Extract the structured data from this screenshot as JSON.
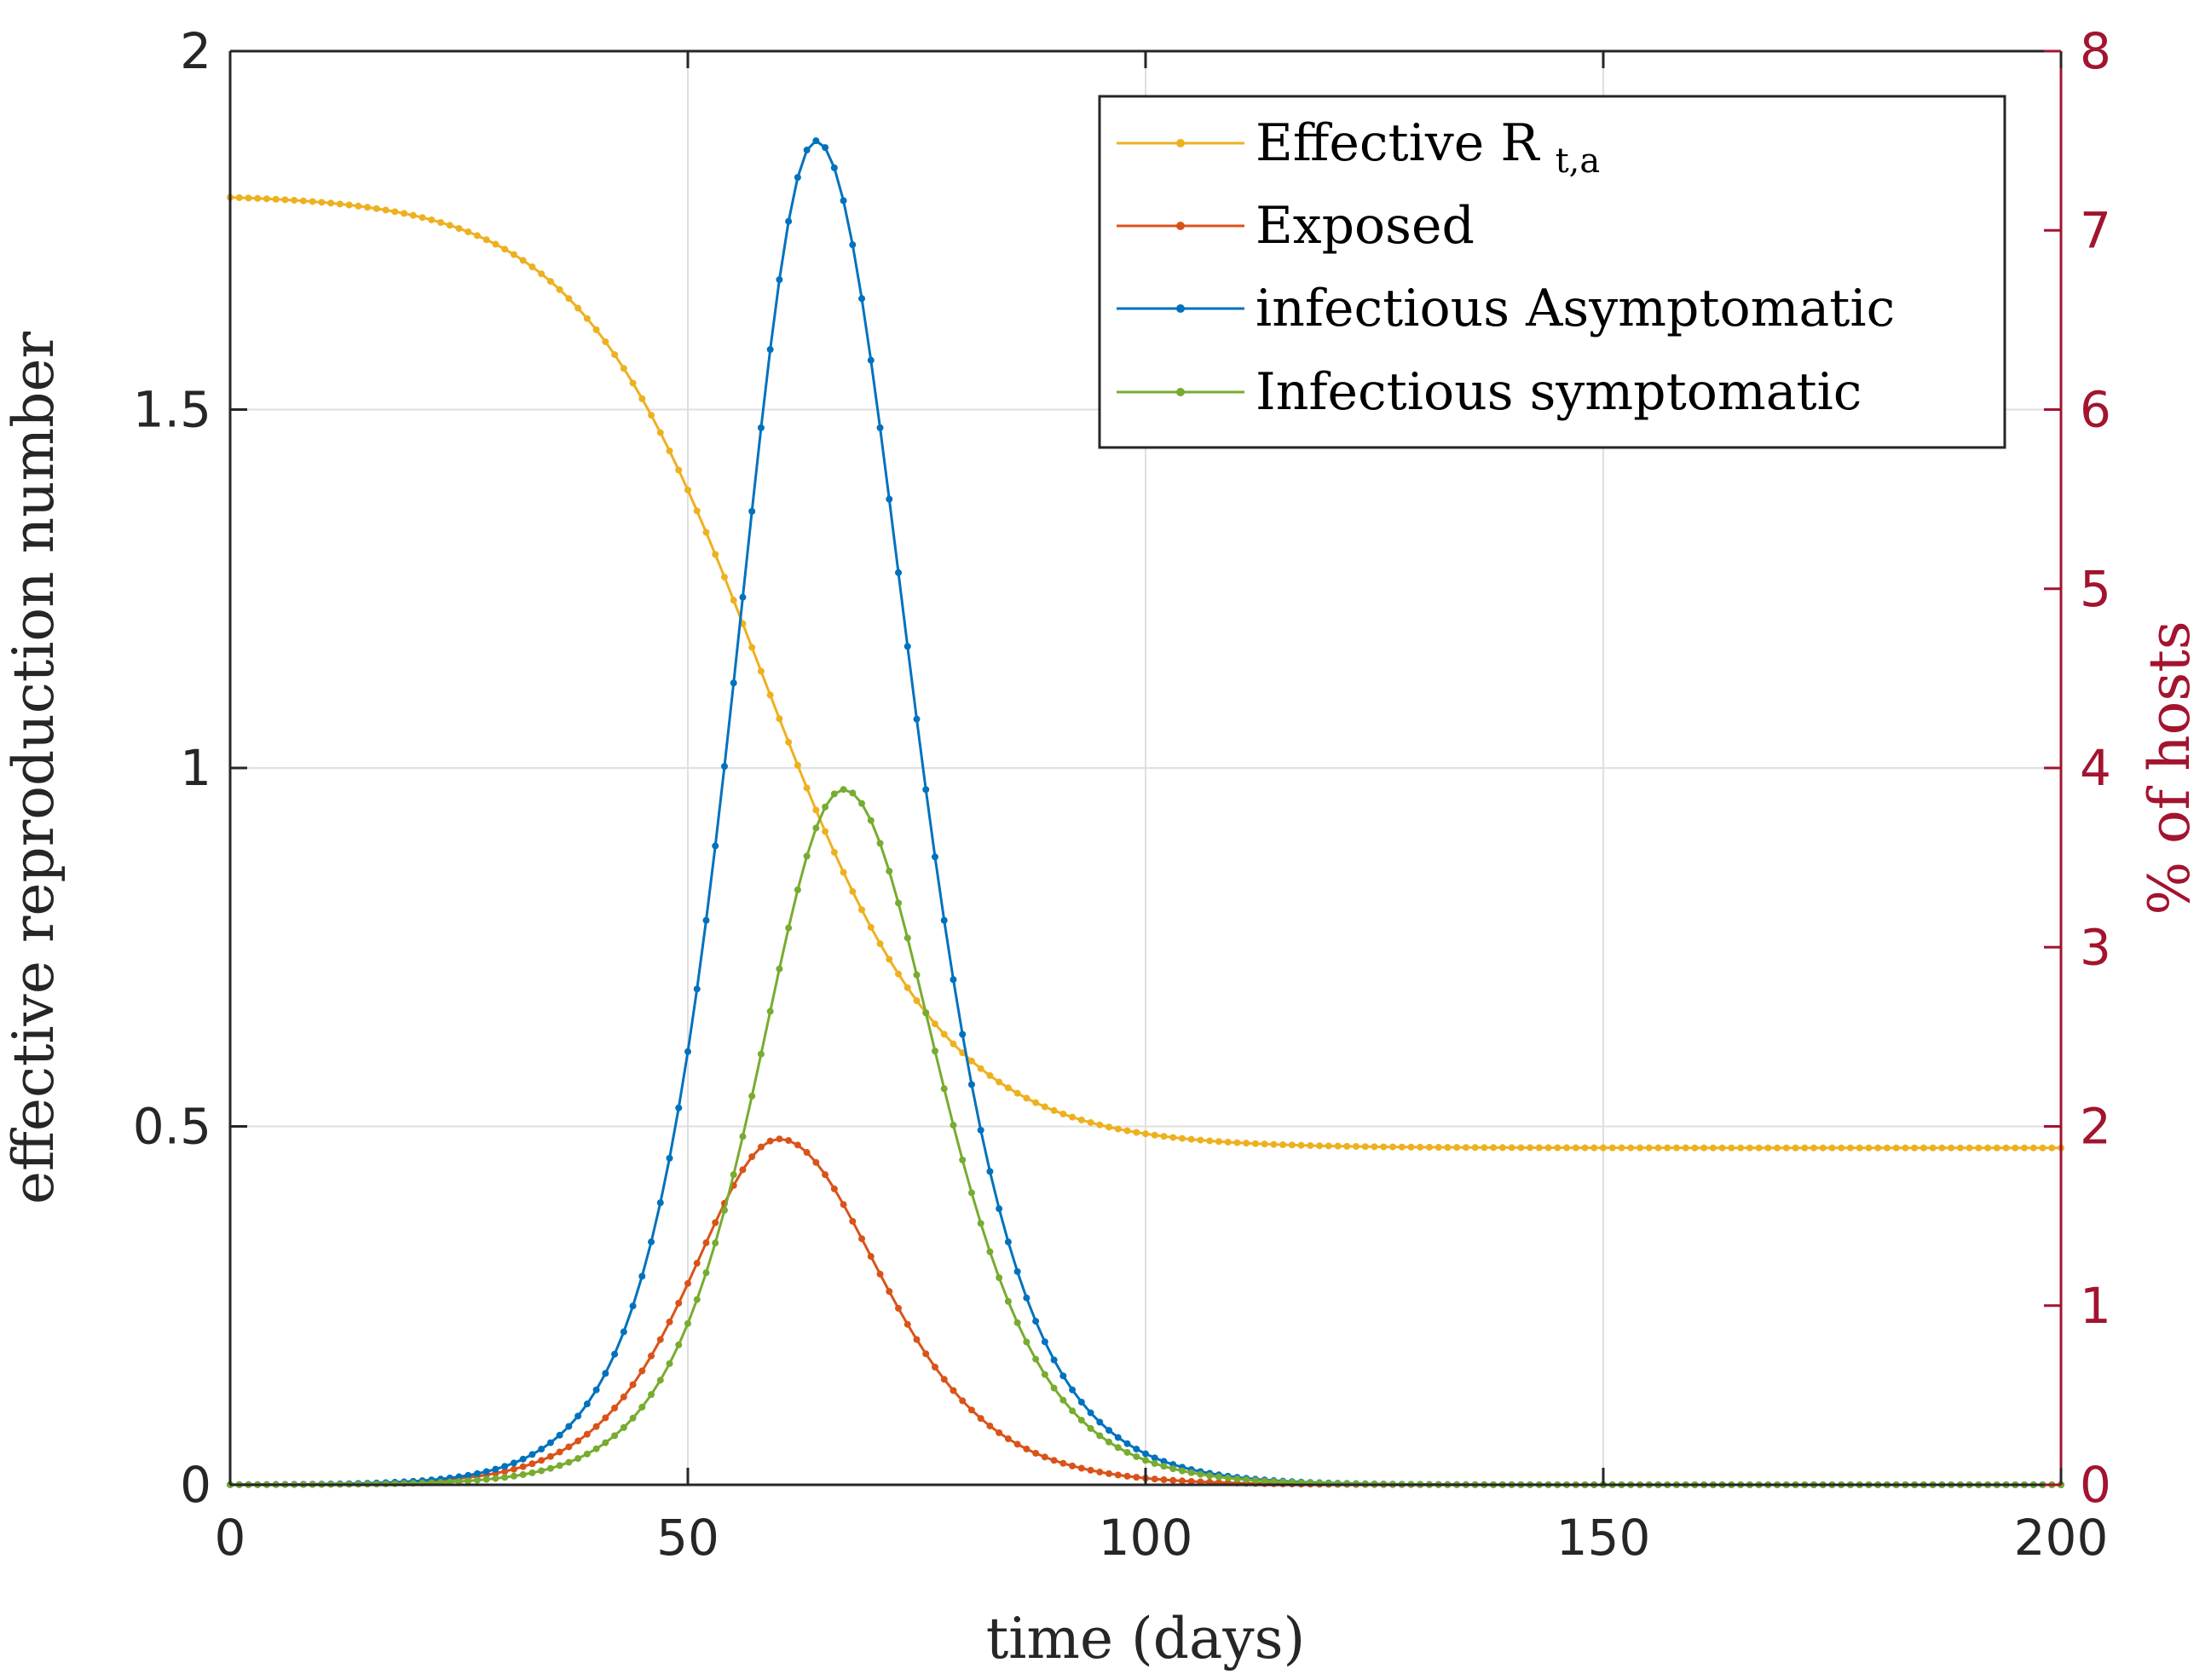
{
  "chart_data": {
    "type": "line",
    "title": "",
    "xlabel": "time (days)",
    "ylabel_left": "effective reproduction number",
    "ylabel_right": "% of hosts",
    "xlim": [
      0,
      200
    ],
    "ylim_left": [
      0,
      2
    ],
    "ylim_right": [
      0,
      8
    ],
    "xticks": [
      "0",
      "50",
      "100",
      "150",
      "200"
    ],
    "yticks_left": [
      "0",
      "0.5",
      "1",
      "1.5",
      "2"
    ],
    "yticks_right": [
      "0",
      "1",
      "2",
      "3",
      "4",
      "5",
      "6",
      "7",
      "8"
    ],
    "grid": true,
    "legend_position": "top-right",
    "colors": {
      "effective_r": "#edb120",
      "exposed": "#d95319",
      "asymptomatic": "#0072bd",
      "symptomatic": "#77ac30",
      "right_axis": "#a2142f",
      "grid": "#dfdfdf",
      "axis": "#262626"
    },
    "series": [
      {
        "key": "effective_r",
        "name": "Effective R",
        "name_subscript": "t,a",
        "axis": "left",
        "model": {
          "form": "logistic",
          "start": 1.8,
          "end": 0.47,
          "midpoint": 58,
          "scale": 10
        }
      },
      {
        "key": "exposed",
        "name": "Exposed",
        "axis": "right",
        "model": {
          "form": "pulse",
          "peak": 1.93,
          "peak_x": 60,
          "rise_width": 13,
          "fall_width": 15
        }
      },
      {
        "key": "asymptomatic",
        "name": "infectious Asymptomatic",
        "axis": "right",
        "model": {
          "form": "pulse",
          "peak": 7.5,
          "peak_x": 64,
          "rise_width": 12,
          "fall_width": 14
        }
      },
      {
        "key": "symptomatic",
        "name": "Infectious symptomatic",
        "axis": "right",
        "model": {
          "form": "pulse",
          "peak": 3.88,
          "peak_x": 67,
          "rise_width": 12.5,
          "fall_width": 14
        }
      }
    ]
  }
}
